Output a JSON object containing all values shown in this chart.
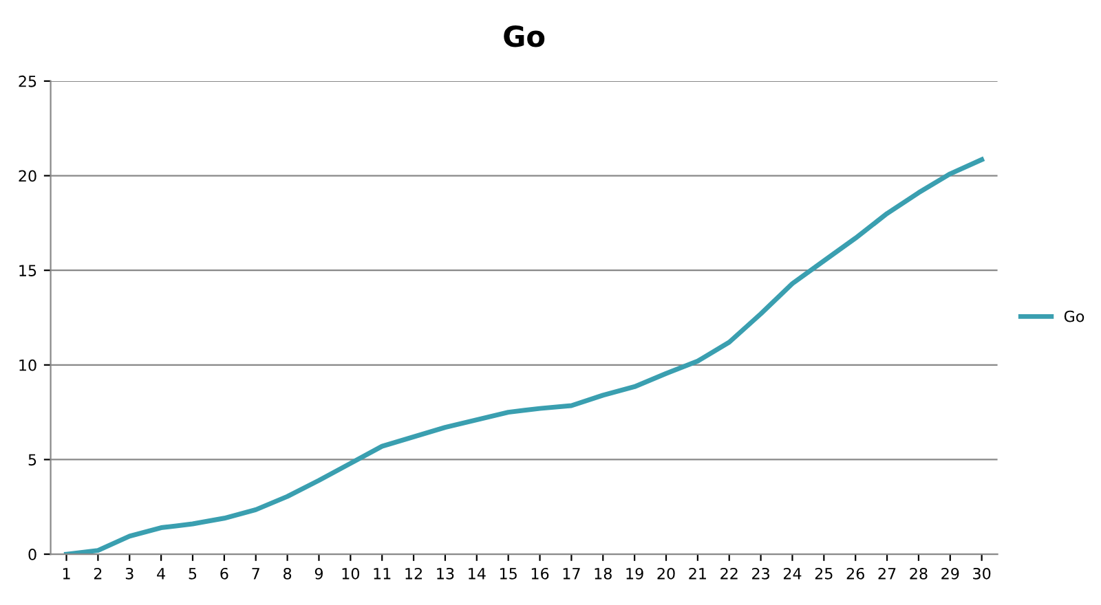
{
  "chart_data": {
    "type": "line",
    "title": "Go",
    "categories": [
      "1",
      "2",
      "3",
      "4",
      "5",
      "6",
      "7",
      "8",
      "9",
      "10",
      "11",
      "12",
      "13",
      "14",
      "15",
      "16",
      "17",
      "18",
      "19",
      "20",
      "21",
      "22",
      "23",
      "24",
      "25",
      "26",
      "27",
      "28",
      "29",
      "30"
    ],
    "series": [
      {
        "name": "Go",
        "color": "#3a9fb0",
        "values": [
          0,
          0.2,
          0.95,
          1.4,
          1.6,
          1.9,
          2.35,
          3.05,
          3.9,
          4.8,
          5.7,
          6.2,
          6.7,
          7.1,
          7.5,
          7.7,
          7.85,
          8.4,
          8.85,
          9.55,
          10.2,
          11.2,
          12.7,
          14.3,
          15.5,
          16.7,
          18.0,
          19.1,
          20.1,
          20.85
        ]
      }
    ],
    "ylim": [
      0,
      25
    ],
    "yticks": [
      0,
      5,
      10,
      15,
      20,
      25
    ],
    "grid": "y",
    "legend": "right",
    "marker": "none",
    "line_style": "solid"
  }
}
